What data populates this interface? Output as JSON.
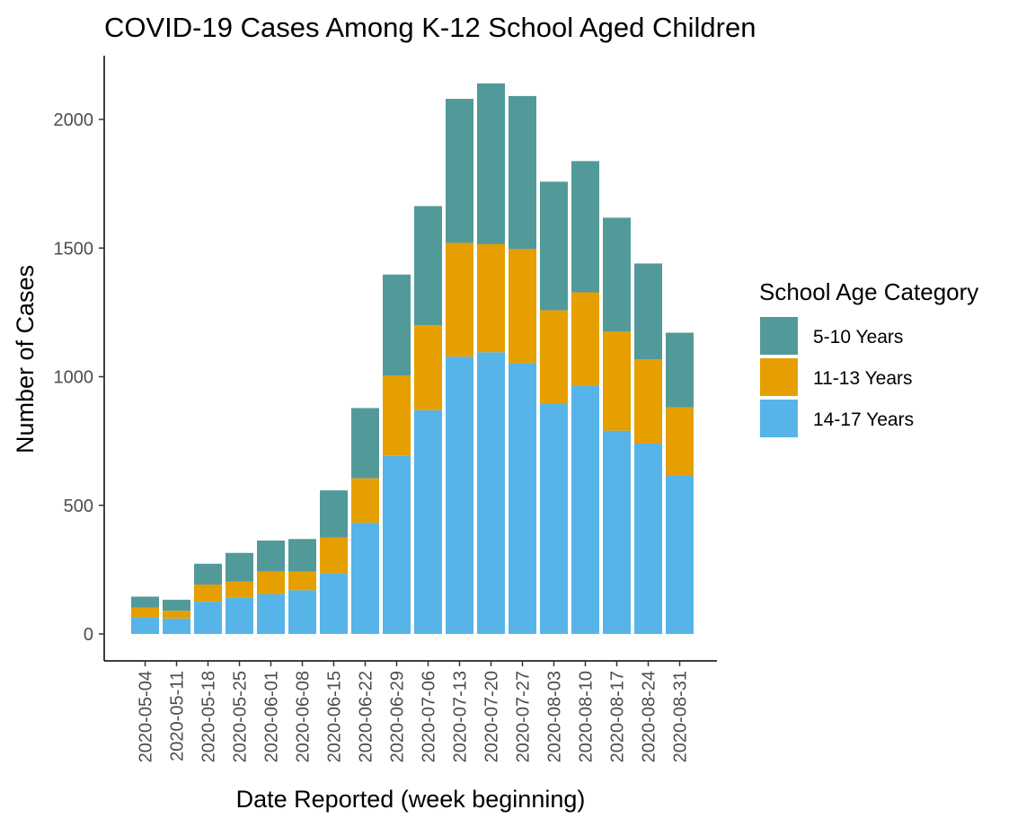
{
  "chart_data": {
    "type": "bar",
    "stacked": true,
    "title": "COVID-19 Cases Among K-12 School Aged Children",
    "xlabel": "Date Reported (week beginning)",
    "ylabel": "Number of Cases",
    "ylim": [
      -100,
      2250
    ],
    "yticks": [
      0,
      500,
      1000,
      1500,
      2000
    ],
    "grid": false,
    "legend_position": "right",
    "legend_title": "School Age Category",
    "categories": [
      "2020-05-04",
      "2020-05-11",
      "2020-05-18",
      "2020-05-25",
      "2020-06-01",
      "2020-06-08",
      "2020-06-15",
      "2020-06-22",
      "2020-06-29",
      "2020-07-06",
      "2020-07-13",
      "2020-07-20",
      "2020-07-27",
      "2020-08-03",
      "2020-08-10",
      "2020-08-17",
      "2020-08-24",
      "2020-08-31"
    ],
    "series": [
      {
        "name": "14-17 Years",
        "color": "#56B4E9",
        "values": [
          65,
          60,
          125,
          140,
          155,
          170,
          237,
          432,
          692,
          870,
          1078,
          1095,
          1053,
          895,
          965,
          790,
          740,
          618
        ]
      },
      {
        "name": "11-13 Years",
        "color": "#E69F00",
        "values": [
          37,
          30,
          67,
          63,
          88,
          72,
          138,
          173,
          312,
          330,
          442,
          420,
          443,
          363,
          363,
          385,
          327,
          263
        ]
      },
      {
        "name": "5-10 Years",
        "color": "#529A9A",
        "values": [
          43,
          43,
          81,
          112,
          120,
          127,
          183,
          273,
          393,
          463,
          560,
          625,
          595,
          500,
          510,
          443,
          373,
          290
        ]
      }
    ],
    "legend_order": [
      "5-10 Years",
      "11-13 Years",
      "14-17 Years"
    ]
  }
}
